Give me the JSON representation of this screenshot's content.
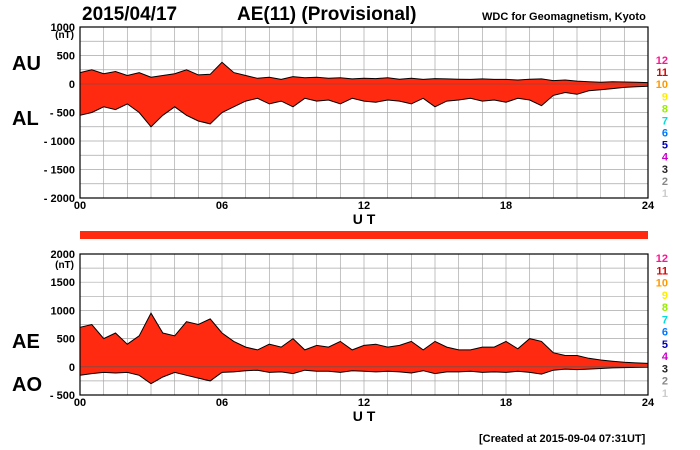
{
  "header": {
    "date": "2015/04/17",
    "title": "AE(11) (Provisional)",
    "source": "WDC for Geomagnetism, Kyoto"
  },
  "footer": {
    "created": "[Created at 2015-09-04 07:31UT]"
  },
  "colors": {
    "fill": "#ff2a10",
    "outline": "#000000",
    "grid": "#a8a8a8"
  },
  "station_scale": {
    "labels": [
      "12",
      "11",
      "10",
      "9",
      "8",
      "7",
      "6",
      "5",
      "4",
      "3",
      "2",
      "1"
    ],
    "colors": [
      "#ff1493",
      "#dd0000",
      "#ff9900",
      "#ffee00",
      "#99ee00",
      "#00dddd",
      "#0077ff",
      "#0000bb",
      "#cc00cc",
      "#222222",
      "#888888",
      "#cccccc"
    ]
  },
  "chart_data": [
    {
      "type": "area",
      "name": "AU/AL",
      "series": [
        {
          "name": "AU",
          "x": [
            0,
            0.5,
            1,
            1.5,
            2,
            2.5,
            3,
            3.5,
            4,
            4.5,
            5,
            5.5,
            6,
            6.5,
            7,
            7.5,
            8,
            8.5,
            9,
            9.5,
            10,
            10.5,
            11,
            11.5,
            12,
            12.5,
            13,
            13.5,
            14,
            14.5,
            15,
            15.5,
            16,
            16.5,
            17,
            17.5,
            18,
            18.5,
            19,
            19.5,
            20,
            20.5,
            21,
            21.5,
            22,
            22.5,
            23,
            23.5,
            24
          ],
          "values": [
            200,
            250,
            180,
            220,
            150,
            200,
            120,
            150,
            180,
            250,
            160,
            170,
            380,
            200,
            150,
            100,
            120,
            80,
            130,
            110,
            120,
            100,
            110,
            90,
            100,
            95,
            110,
            85,
            100,
            80,
            95,
            90,
            85,
            80,
            90,
            80,
            80,
            70,
            85,
            90,
            60,
            70,
            50,
            40,
            30,
            40,
            35,
            30,
            25
          ]
        },
        {
          "name": "AL",
          "x": [
            0,
            0.5,
            1,
            1.5,
            2,
            2.5,
            3,
            3.5,
            4,
            4.5,
            5,
            5.5,
            6,
            6.5,
            7,
            7.5,
            8,
            8.5,
            9,
            9.5,
            10,
            10.5,
            11,
            11.5,
            12,
            12.5,
            13,
            13.5,
            14,
            14.5,
            15,
            15.5,
            16,
            16.5,
            17,
            17.5,
            18,
            18.5,
            19,
            19.5,
            20,
            20.5,
            21,
            21.5,
            22,
            22.5,
            23,
            23.5,
            24
          ],
          "values": [
            -550,
            -500,
            -400,
            -450,
            -350,
            -500,
            -750,
            -550,
            -400,
            -550,
            -650,
            -700,
            -500,
            -400,
            -300,
            -250,
            -350,
            -300,
            -400,
            -250,
            -300,
            -280,
            -350,
            -250,
            -300,
            -320,
            -280,
            -300,
            -350,
            -250,
            -400,
            -300,
            -280,
            -250,
            -300,
            -280,
            -320,
            -250,
            -280,
            -380,
            -200,
            -150,
            -180,
            -120,
            -100,
            -80,
            -60,
            -50,
            -40
          ]
        }
      ],
      "xlabel": "U T",
      "ylabel": "(nT)",
      "side_labels": [
        "AU",
        "AL"
      ],
      "xticks": [
        "00",
        "06",
        "12",
        "18",
        "24"
      ],
      "yticks": [
        "1000",
        "500",
        "0",
        "- 500",
        "- 1000",
        "- 1500",
        "- 2000"
      ],
      "xlim": [
        0,
        24
      ],
      "ylim": [
        -2000,
        1000
      ],
      "grid": true
    },
    {
      "type": "area",
      "name": "AE/AO",
      "series": [
        {
          "name": "AE",
          "x": [
            0,
            0.5,
            1,
            1.5,
            2,
            2.5,
            3,
            3.5,
            4,
            4.5,
            5,
            5.5,
            6,
            6.5,
            7,
            7.5,
            8,
            8.5,
            9,
            9.5,
            10,
            10.5,
            11,
            11.5,
            12,
            12.5,
            13,
            13.5,
            14,
            14.5,
            15,
            15.5,
            16,
            16.5,
            17,
            17.5,
            18,
            18.5,
            19,
            19.5,
            20,
            20.5,
            21,
            21.5,
            22,
            22.5,
            23,
            23.5,
            24
          ],
          "values": [
            700,
            750,
            500,
            600,
            400,
            550,
            950,
            600,
            550,
            800,
            750,
            850,
            600,
            450,
            350,
            300,
            400,
            350,
            500,
            300,
            380,
            350,
            450,
            300,
            380,
            400,
            350,
            380,
            450,
            300,
            450,
            350,
            300,
            300,
            350,
            350,
            450,
            320,
            500,
            450,
            250,
            200,
            200,
            150,
            120,
            100,
            80,
            70,
            60
          ]
        },
        {
          "name": "AO",
          "x": [
            0,
            0.5,
            1,
            1.5,
            2,
            2.5,
            3,
            3.5,
            4,
            4.5,
            5,
            5.5,
            6,
            6.5,
            7,
            7.5,
            8,
            8.5,
            9,
            9.5,
            10,
            10.5,
            11,
            11.5,
            12,
            12.5,
            13,
            13.5,
            14,
            14.5,
            15,
            15.5,
            16,
            16.5,
            17,
            17.5,
            18,
            18.5,
            19,
            19.5,
            20,
            20.5,
            21,
            21.5,
            22,
            22.5,
            23,
            23.5,
            24
          ],
          "values": [
            -150,
            -120,
            -100,
            -110,
            -100,
            -150,
            -300,
            -180,
            -100,
            -150,
            -200,
            -250,
            -100,
            -90,
            -70,
            -60,
            -100,
            -90,
            -120,
            -60,
            -80,
            -80,
            -100,
            -70,
            -80,
            -90,
            -80,
            -90,
            -110,
            -70,
            -120,
            -90,
            -90,
            -80,
            -100,
            -90,
            -100,
            -80,
            -100,
            -130,
            -60,
            -40,
            -50,
            -40,
            -30,
            -20,
            -15,
            -10,
            -8
          ]
        }
      ],
      "xlabel": "U T",
      "ylabel": "(nT)",
      "side_labels": [
        "AE",
        "AO"
      ],
      "xticks": [
        "00",
        "06",
        "12",
        "18",
        "24"
      ],
      "yticks": [
        "2000",
        "1500",
        "1000",
        "500",
        "0",
        "- 500"
      ],
      "xlim": [
        0,
        24
      ],
      "ylim": [
        -500,
        2000
      ],
      "grid": true
    }
  ]
}
